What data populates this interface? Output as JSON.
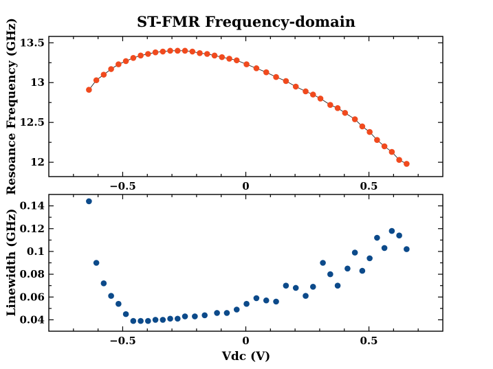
{
  "chart_data": [
    {
      "type": "scatter",
      "title": "ST-FMR Frequency-domain",
      "xlabel": "",
      "ylabel": "Resoance Frequency (GHz)",
      "xlim": [
        -0.8,
        0.8
      ],
      "ylim": [
        11.82,
        13.58
      ],
      "xticks": [
        -0.5,
        0,
        0.5
      ],
      "xtick_labels": [
        "−0.5",
        "0",
        "0.5"
      ],
      "yticks": [
        12,
        12.5,
        13,
        13.5
      ],
      "ytick_labels": [
        "12",
        "12.5",
        "13",
        "13.5"
      ],
      "grid": false,
      "fit_line": true,
      "marker_color": "#f04a1e",
      "line_color": "#222222",
      "series": [
        {
          "x": [
            -0.637,
            -0.607,
            -0.577,
            -0.547,
            -0.517,
            -0.487,
            -0.457,
            -0.427,
            -0.397,
            -0.367,
            -0.337,
            -0.307,
            -0.277,
            -0.247,
            -0.217,
            -0.187,
            -0.157,
            -0.127,
            -0.097,
            -0.067,
            -0.037,
            0.003,
            0.043,
            0.083,
            0.123,
            0.163,
            0.203,
            0.243,
            0.273,
            0.303,
            0.343,
            0.373,
            0.403,
            0.443,
            0.473,
            0.503,
            0.533,
            0.563,
            0.593,
            0.623,
            0.653
          ],
          "y": [
            12.91,
            13.03,
            13.1,
            13.17,
            13.23,
            13.27,
            13.31,
            13.34,
            13.36,
            13.38,
            13.39,
            13.4,
            13.4,
            13.4,
            13.39,
            13.37,
            13.36,
            13.34,
            13.32,
            13.3,
            13.28,
            13.23,
            13.18,
            13.13,
            13.07,
            13.02,
            12.95,
            12.89,
            12.85,
            12.8,
            12.72,
            12.68,
            12.62,
            12.54,
            12.45,
            12.38,
            12.28,
            12.2,
            12.13,
            12.03,
            11.98
          ]
        }
      ]
    },
    {
      "type": "scatter",
      "title": "",
      "xlabel": "Vdc (V)",
      "ylabel": "Linewidth (GHz)",
      "xlim": [
        -0.8,
        0.8
      ],
      "ylim": [
        0.03,
        0.15
      ],
      "xticks": [
        -0.5,
        0,
        0.5
      ],
      "xtick_labels": [
        "−0.5",
        "0",
        "0.5"
      ],
      "yticks": [
        0.04,
        0.06,
        0.08,
        0.1,
        0.12,
        0.14
      ],
      "ytick_labels": [
        "0.04",
        "0.06",
        "0.08",
        "0.1",
        "0.12",
        "0.14"
      ],
      "grid": false,
      "marker_color": "#0c4a8a",
      "series": [
        {
          "x": [
            -0.637,
            -0.607,
            -0.577,
            -0.547,
            -0.517,
            -0.487,
            -0.457,
            -0.427,
            -0.397,
            -0.367,
            -0.337,
            -0.307,
            -0.277,
            -0.247,
            -0.207,
            -0.167,
            -0.117,
            -0.077,
            -0.037,
            0.003,
            0.043,
            0.083,
            0.123,
            0.163,
            0.203,
            0.243,
            0.273,
            0.313,
            0.343,
            0.373,
            0.413,
            0.443,
            0.473,
            0.503,
            0.533,
            0.563,
            0.593,
            0.623,
            0.653
          ],
          "y": [
            0.144,
            0.09,
            0.072,
            0.061,
            0.054,
            0.045,
            0.039,
            0.039,
            0.039,
            0.04,
            0.04,
            0.041,
            0.041,
            0.043,
            0.043,
            0.044,
            0.046,
            0.046,
            0.049,
            0.054,
            0.059,
            0.057,
            0.056,
            0.07,
            0.068,
            0.061,
            0.069,
            0.09,
            0.08,
            0.07,
            0.085,
            0.099,
            0.083,
            0.094,
            0.112,
            0.103,
            0.118,
            0.114,
            0.102
          ]
        }
      ]
    }
  ]
}
